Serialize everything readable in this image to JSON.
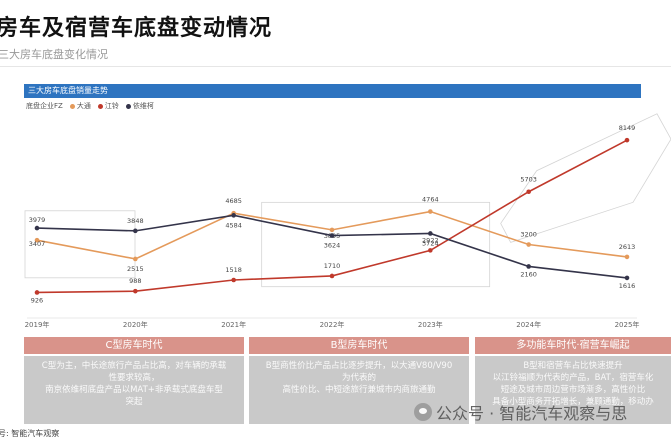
{
  "page": {
    "title": "房车及宿营车底盘变动情况",
    "subtitle": "三大房车底盘变化情况",
    "source": "号: 智能汽车观察",
    "watermark": "公众号 · 智能汽车观察与思"
  },
  "chart_data": {
    "type": "line",
    "title": "三大房车底盘销量走势",
    "legend_title": "底盘企业FZ",
    "categories": [
      "2019年",
      "2020年",
      "2021年",
      "2022年",
      "2023年",
      "2024年",
      "2025年"
    ],
    "series": [
      {
        "name": "大通",
        "color": "#e49a5b",
        "values": [
          3407,
          2515,
          4685,
          3895,
          4764,
          3200,
          2613
        ],
        "labels": [
          "3407",
          "2515",
          "4685",
          "3895",
          "4764",
          "3200",
          "2613"
        ]
      },
      {
        "name": "江铃",
        "color": "#c0392b",
        "values": [
          926,
          988,
          1518,
          1710,
          2922,
          5703,
          8149
        ],
        "labels": [
          "926",
          "988",
          "1518",
          "1710",
          "2922",
          "5703",
          "8149"
        ]
      },
      {
        "name": "依维柯",
        "color": "#34344a",
        "values": [
          3979,
          3848,
          4584,
          3624,
          3724,
          2160,
          1616
        ],
        "labels": [
          "3979",
          "3848",
          "4584",
          "3624",
          "3724",
          "2160",
          "1616"
        ]
      }
    ],
    "ylim": [
      0,
      9200
    ],
    "grid": false,
    "legend_position": "top-left"
  },
  "eras": [
    {
      "title": "C型房车时代",
      "body": [
        "C型为主，中长途旅行产品占比高，对车辆的承载",
        "性要求较高，",
        "南京依维柯底盘产品以MAT+非承载式底盘车型",
        "突起"
      ]
    },
    {
      "title": "B型房车时代",
      "body": [
        "B型商性价比产品占比逐步提升，以大通V80/V90",
        "为代表的",
        "高性价比、中短途旅行兼城市内商旅通勤"
      ]
    },
    {
      "title": "多功能车时代·宿营车崛起",
      "body": [
        "B型和宿营车占比快速提升",
        "以江铃福顺为代表的产品，BAT，宿营车化",
        "短途及城市周边营市场渐多，高性价比",
        "具备小型商务开拓增长，兼顾通勤，移动办"
      ]
    }
  ],
  "colors": {
    "header_blue": "#2e74c0",
    "era_head": "#d9938a",
    "era_body": "#c9c9c9"
  }
}
